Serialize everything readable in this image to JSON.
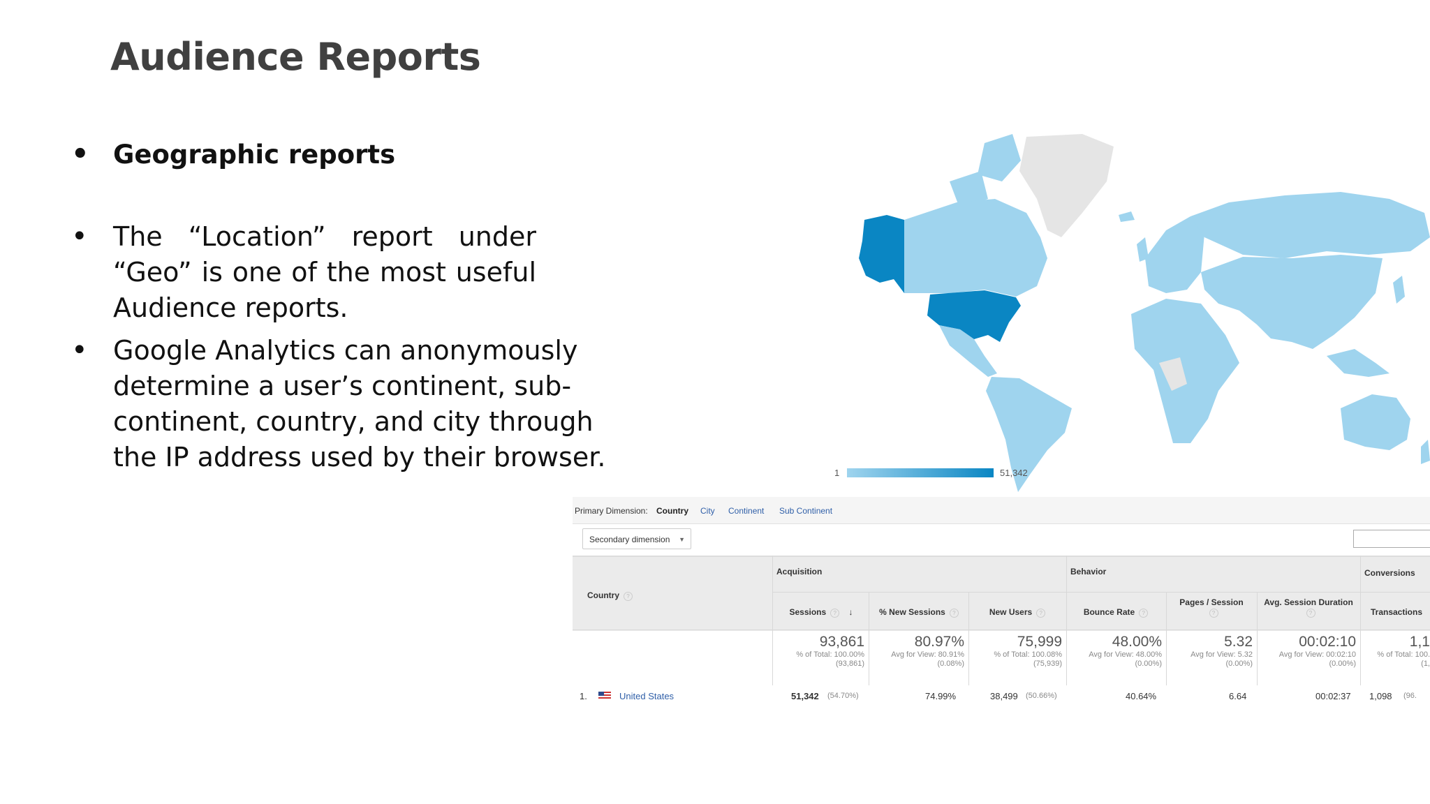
{
  "slide": {
    "title": "Audience Reports",
    "bullets": [
      "Geographic reports",
      "The “Location” report under “Geo” is one of the most useful Audience reports.",
      "Google Analytics can anonymously determine a user’s continent, sub-continent, country, and city through the IP address used by their browser."
    ]
  },
  "map": {
    "legend_min": "1",
    "legend_max": "51,342",
    "colors": {
      "light": "#9fd4ee",
      "dark": "#0a86c3",
      "none": "#e5e5e5"
    }
  },
  "analytics": {
    "primary_dimension_label": "Primary Dimension:",
    "dimensions": [
      "Country",
      "City",
      "Continent",
      "Sub Continent"
    ],
    "secondary_dimension": "Secondary dimension",
    "first_column": "Country",
    "groups": [
      "Acquisition",
      "Behavior",
      "Conversions"
    ],
    "columns": [
      "Sessions",
      "% New Sessions",
      "New Users",
      "Bounce Rate",
      "Pages / Session",
      "Avg. Session Duration",
      "Transactions"
    ],
    "totals": [
      {
        "value": "93,861",
        "sub1": "% of Total: 100.00%",
        "sub2": "(93,861)"
      },
      {
        "value": "80.97%",
        "sub1": "Avg for View: 80.91%",
        "sub2": "(0.08%)"
      },
      {
        "value": "75,999",
        "sub1": "% of Total: 100.08%",
        "sub2": "(75,939)"
      },
      {
        "value": "48.00%",
        "sub1": "Avg for View: 48.00%",
        "sub2": "(0.00%)"
      },
      {
        "value": "5.32",
        "sub1": "Avg for View: 5.32",
        "sub2": "(0.00%)"
      },
      {
        "value": "00:02:10",
        "sub1": "Avg for View: 00:02:10",
        "sub2": "(0.00%)"
      },
      {
        "value": "1,1",
        "sub1": "% of Total: 100.",
        "sub2": "(1,"
      }
    ],
    "row1": {
      "index": "1.",
      "country": "United States",
      "sessions": "51,342",
      "sessions_pct": "(54.70%)",
      "new_sessions": "74.99%",
      "new_users": "38,499",
      "new_users_pct": "(50.66%)",
      "bounce_rate": "40.64%",
      "pages_session": "6.64",
      "duration": "00:02:37",
      "transactions": "1,098",
      "transactions_pct": "(96."
    }
  }
}
